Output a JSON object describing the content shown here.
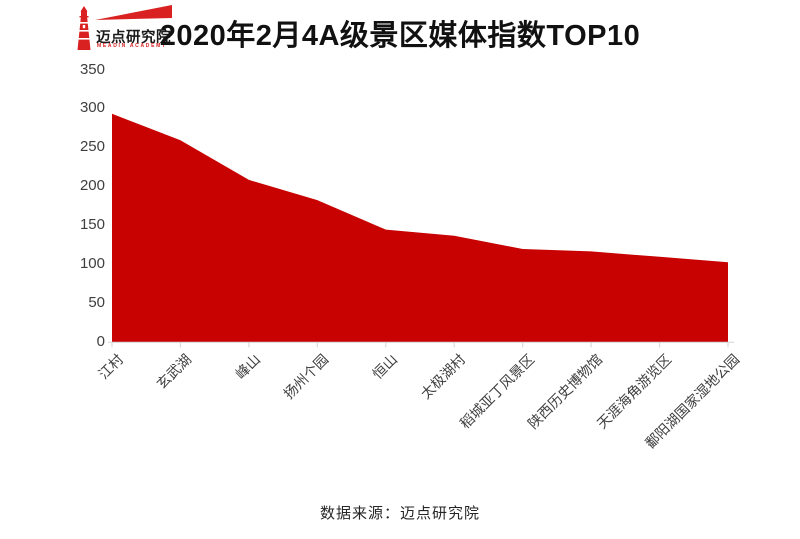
{
  "logo": {
    "brand": "迈点研究院",
    "subtitle": "MEADIN ACADEMY"
  },
  "header": {
    "title": "2020年2月4A级景区媒体指数TOP10"
  },
  "footer": {
    "source": "数据来源：迈点研究院"
  },
  "chart_data": {
    "type": "area",
    "title": "2020年2月4A级景区媒体指数TOP10",
    "categories": [
      "江村",
      "玄武湖",
      "峰山",
      "扬州个园",
      "恒山",
      "太极湖村",
      "稻城亚丁风景区",
      "陕西历史博物馆",
      "天涯海角游览区",
      "鄱阳湖国家湿地公园"
    ],
    "values": [
      293,
      259,
      208,
      182,
      144,
      136,
      119,
      116,
      109,
      102
    ],
    "xlabel": "",
    "ylabel": "",
    "ylim": [
      0,
      350
    ],
    "yticks": [
      0,
      50,
      100,
      150,
      200,
      250,
      300,
      350
    ],
    "grid": false,
    "legend": false,
    "colors": {
      "area": "#c80101",
      "axis": "#d9d9d9",
      "tick_text": "#3f3f3f",
      "logo_red": "#d92121"
    }
  }
}
